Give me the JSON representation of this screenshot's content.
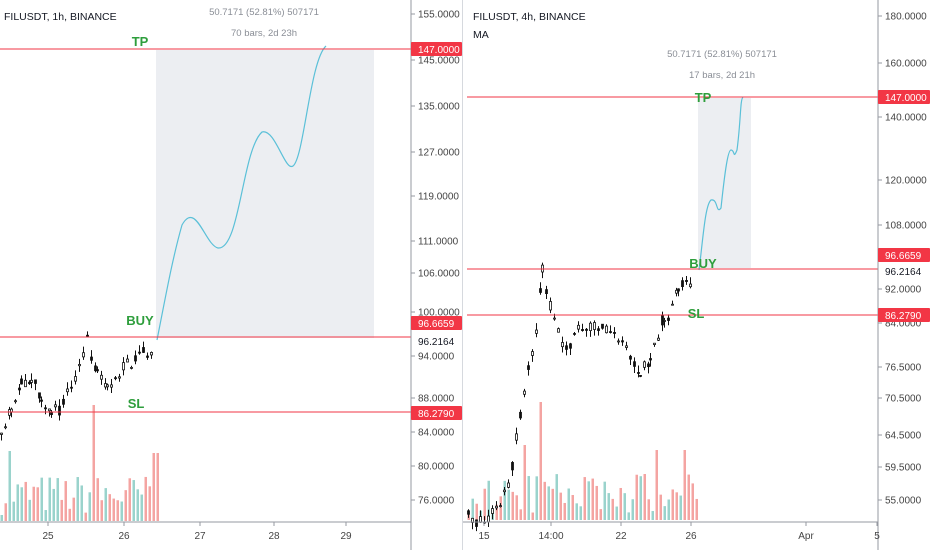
{
  "colors": {
    "up": "#26a69a",
    "down": "#ef5350",
    "up_vol": "#9ad3cc",
    "down_vol": "#f4a4a2",
    "candle_body": "#111111",
    "level_line": "#f23645",
    "label_green": "#2e9e3c",
    "projection_line": "#5bc0d8",
    "projection_box": "#eceef2",
    "axis_text": "#444444"
  },
  "chart_data": [
    {
      "type": "candlestick",
      "symbol_title": "FILUSDT, 1h, BINANCE",
      "measure_text": "50.7171 (52.81%) 507171",
      "bars_text": "70 bars, 2d 23h",
      "y_ticks": [
        "155.0000",
        "145.0000",
        "135.0000",
        "127.0000",
        "119.0000",
        "111.0000",
        "106.0000",
        "100.0000",
        "94.0000",
        "88.0000",
        "84.0000",
        "80.0000",
        "76.0000"
      ],
      "x_ticks": [
        "25",
        "26",
        "27",
        "28",
        "29"
      ],
      "levels": {
        "tp": {
          "label": "TP",
          "price": "147.0000"
        },
        "buy": {
          "label": "BUY",
          "price": "96.6659"
        },
        "sl": {
          "label": "SL",
          "price": "86.2790"
        },
        "last": {
          "price": "96.2164"
        }
      }
    },
    {
      "type": "candlestick",
      "symbol_title": "FILUSDT, 4h, BINANCE",
      "indicator": "MA",
      "measure_text": "50.7171 (52.81%) 507171",
      "bars_text": "17 bars, 2d 21h",
      "y_ticks": [
        "180.0000",
        "160.0000",
        "140.0000",
        "120.0000",
        "108.0000",
        "92.0000",
        "84.0000",
        "76.5000",
        "70.5000",
        "64.5000",
        "59.5000",
        "55.0000"
      ],
      "x_ticks": [
        "15",
        "14:00",
        "22",
        "26",
        "Apr",
        "5"
      ],
      "levels": {
        "tp": {
          "label": "TP",
          "price": "147.0000"
        },
        "buy": {
          "label": "BUY",
          "price": "96.6659"
        },
        "sl": {
          "label": "SL",
          "price": "86.2790"
        },
        "last": {
          "price": "96.2164"
        }
      }
    }
  ]
}
